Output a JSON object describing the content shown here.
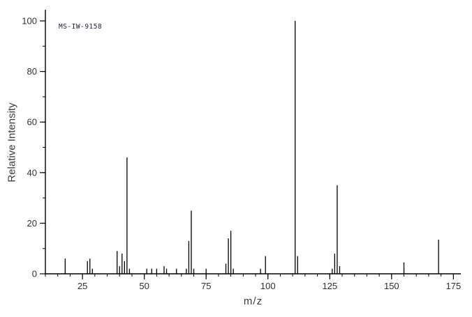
{
  "chart_data": {
    "type": "bar",
    "subtype": "mass-spectrum-stick-plot",
    "title": "MS-IW-9158",
    "xlabel": "m/z",
    "ylabel": "Relative Intensity",
    "xlim": [
      10,
      178
    ],
    "ylim": [
      0,
      104
    ],
    "x_major_ticks": [
      25,
      50,
      75,
      100,
      125,
      150,
      175
    ],
    "x_minor_step": 5,
    "y_major_ticks": [
      0,
      20,
      40,
      60,
      80,
      100
    ],
    "y_minor_step": 10,
    "grid": false,
    "legend": "none",
    "peaks": [
      [
        18,
        6
      ],
      [
        27,
        5
      ],
      [
        28,
        6
      ],
      [
        29,
        2
      ],
      [
        39,
        9
      ],
      [
        40,
        3
      ],
      [
        41,
        8
      ],
      [
        42,
        5
      ],
      [
        43,
        46
      ],
      [
        44,
        2
      ],
      [
        51,
        2
      ],
      [
        53,
        2
      ],
      [
        55,
        2
      ],
      [
        58,
        3
      ],
      [
        59,
        2
      ],
      [
        63,
        2
      ],
      [
        67,
        2
      ],
      [
        68,
        13
      ],
      [
        69,
        25
      ],
      [
        70,
        2
      ],
      [
        75,
        2
      ],
      [
        83,
        4
      ],
      [
        84,
        14
      ],
      [
        85,
        17
      ],
      [
        86,
        2
      ],
      [
        97,
        2
      ],
      [
        99,
        7
      ],
      [
        111,
        100
      ],
      [
        112,
        7
      ],
      [
        126,
        2
      ],
      [
        127,
        8
      ],
      [
        128,
        35
      ],
      [
        129,
        3
      ],
      [
        155,
        4.5
      ],
      [
        169,
        13.5
      ]
    ]
  },
  "colors": {
    "background": "#ffffff",
    "axis": "#000000",
    "peak": "#000000",
    "tick_text": "#2e2e2e",
    "axis_label_text": "#3c3c3c",
    "spectrum_id_text": "#1c1c3a"
  }
}
